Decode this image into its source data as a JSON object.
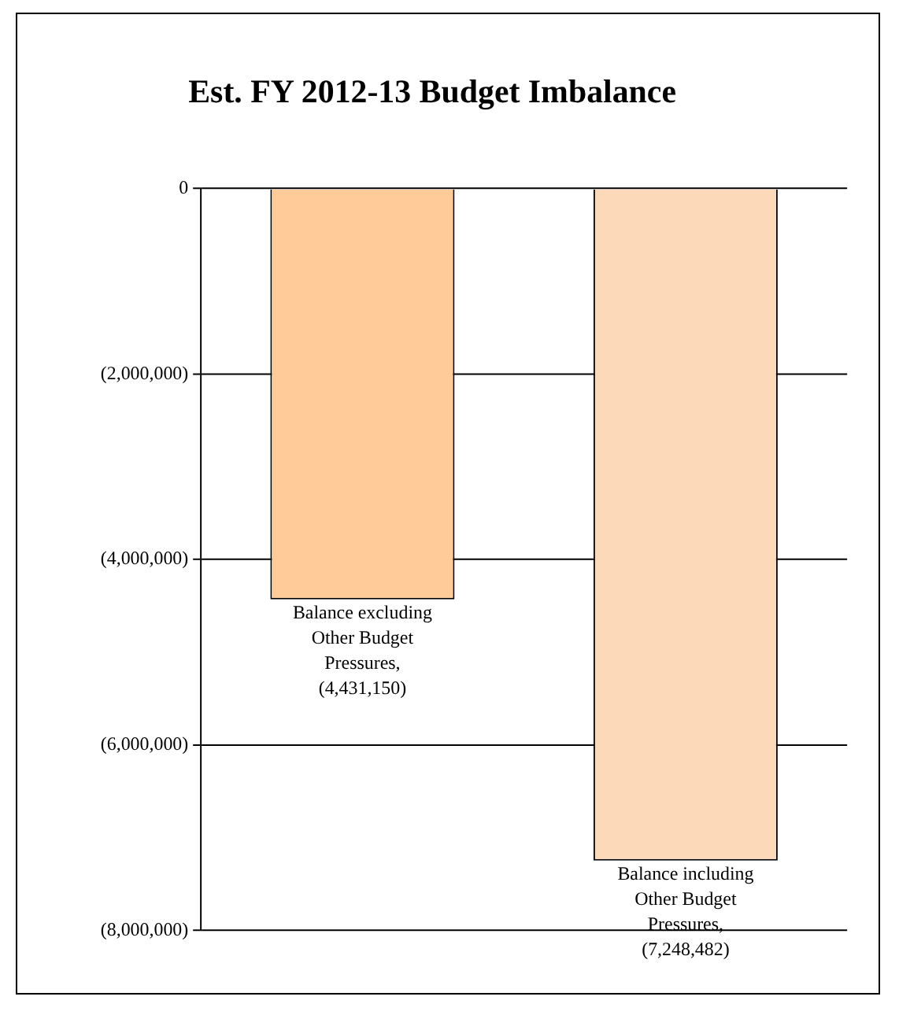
{
  "chart_data": {
    "type": "bar",
    "title": "Est. FY 2012-13 Budget Imbalance",
    "categories": [
      null,
      null
    ],
    "values": [
      -4431150,
      -7248482
    ],
    "value_labels": [
      "Balance excluding Other Budget Pressures, (4,431,150)",
      "Balance including Other Budget Pressures, (7,248,482)"
    ],
    "colors": [
      "#ffcc99",
      "#fcd9b8"
    ],
    "ylim": [
      -8000000,
      0
    ],
    "yticks": [
      {
        "value": -8000000,
        "label": "(8,000,000)"
      },
      {
        "value": -6000000,
        "label": "(6,000,000)"
      },
      {
        "value": -4000000,
        "label": "(4,000,000)"
      },
      {
        "value": -2000000,
        "label": "(2,000,000)"
      },
      0
    ],
    "grid": "y",
    "legend": false
  }
}
